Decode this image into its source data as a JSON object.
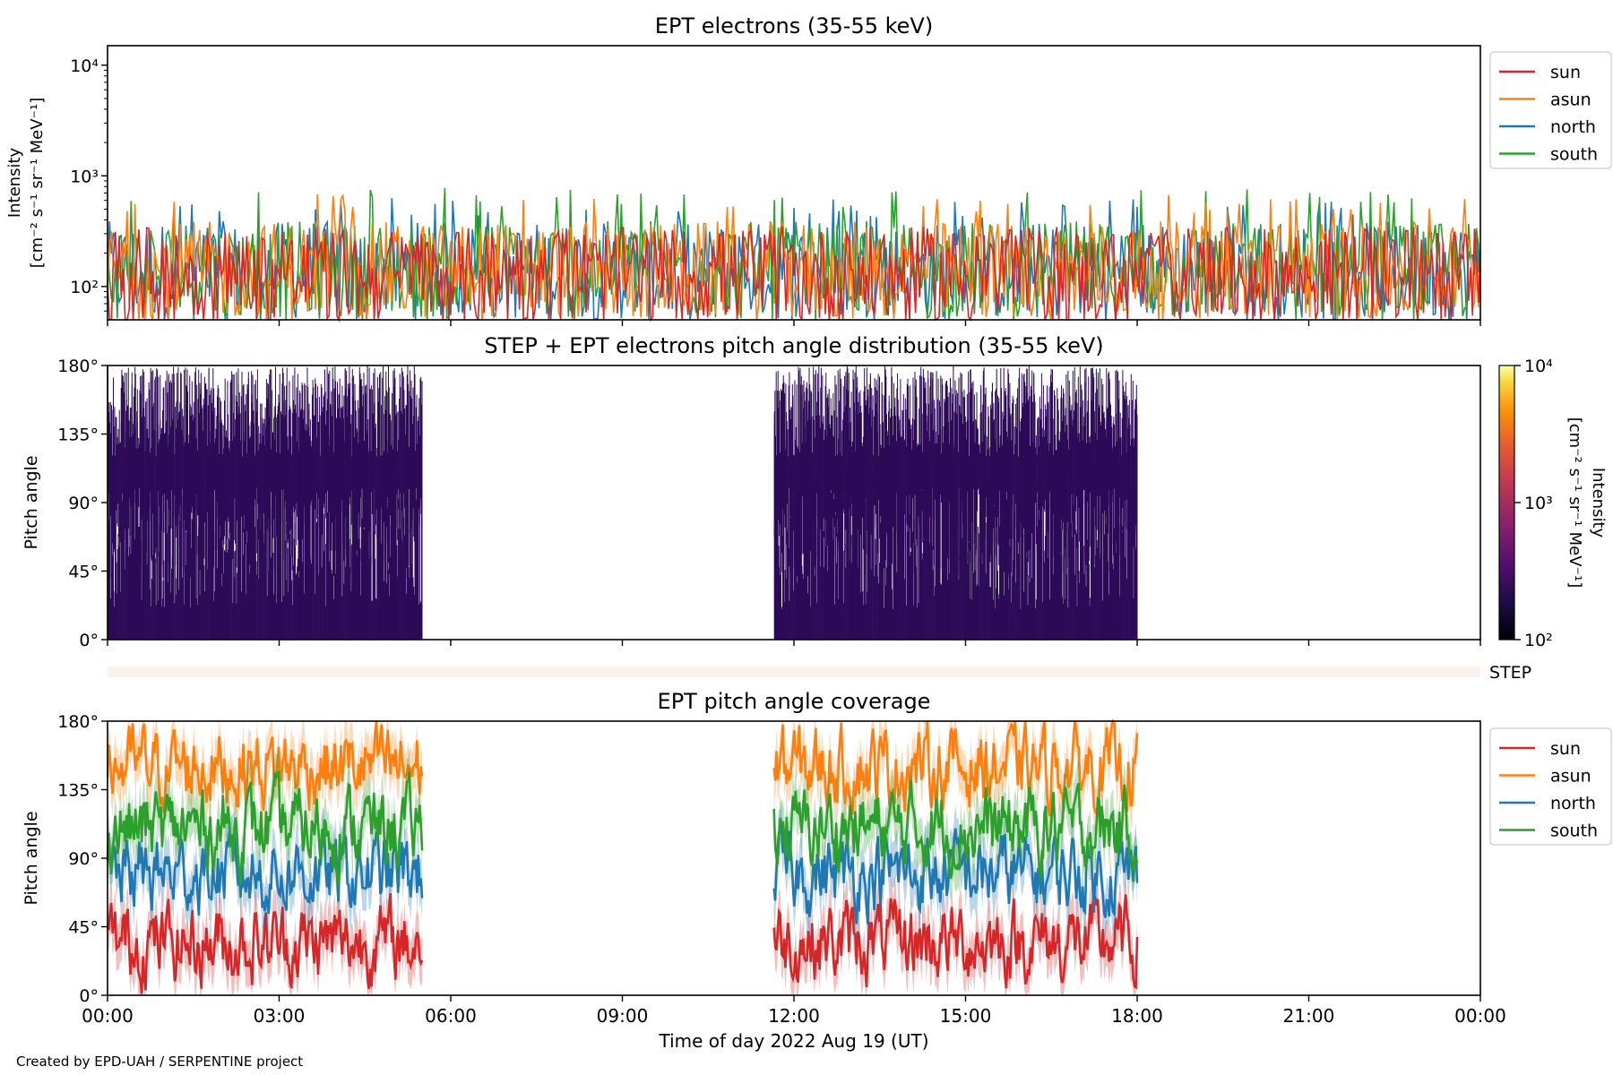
{
  "footer": "Created by EPD-UAH / SERPENTINE project",
  "colors": {
    "sun": "#d62728",
    "asun": "#ff7f0e",
    "north": "#1f77b4",
    "south": "#2ca02c",
    "pad_fill": "#2d0a58",
    "step_band": "#fdf1ee"
  },
  "chart_data": [
    {
      "id": "ept_intensity",
      "type": "line",
      "title": "EPT electrons (35-55 keV)",
      "ylabel_lines": [
        "Intensity",
        "[cm⁻² s⁻¹ sr⁻¹ MeV⁻¹]"
      ],
      "yscale": "log",
      "ylim": [
        50,
        15000
      ],
      "y_ticks": [
        {
          "value": 100,
          "label": "10²"
        },
        {
          "value": 1000,
          "label": "10³"
        },
        {
          "value": 10000,
          "label": "10⁴"
        }
      ],
      "xlim": [
        0,
        24
      ],
      "x_ticks": [
        0,
        3,
        6,
        9,
        12,
        15,
        18,
        21,
        24
      ],
      "legend_position": "outside-right",
      "series": [
        {
          "name": "north",
          "color": "#1f77b4",
          "typical_value": 170,
          "max_value": 630
        },
        {
          "name": "south",
          "color": "#2ca02c",
          "typical_value": 170,
          "max_value": 780
        },
        {
          "name": "asun",
          "color": "#ff7f0e",
          "typical_value": 170,
          "max_value": 700
        },
        {
          "name": "sun",
          "color": "#d62728",
          "typical_value": 150,
          "max_value": 350
        }
      ]
    },
    {
      "id": "pitch_angle_distribution",
      "type": "heatmap",
      "title": "STEP + EPT electrons pitch angle distribution (35-55 keV)",
      "ylabel": "Pitch angle",
      "ylim": [
        0,
        180
      ],
      "y_ticks": [
        {
          "value": 0,
          "label": "0°"
        },
        {
          "value": 45,
          "label": "45°"
        },
        {
          "value": 90,
          "label": "90°"
        },
        {
          "value": 135,
          "label": "135°"
        },
        {
          "value": 180,
          "label": "180°"
        }
      ],
      "xlim": [
        0,
        24
      ],
      "data_intervals_hours": [
        [
          0,
          5.5
        ],
        [
          11.65,
          18.0
        ]
      ],
      "typical_intensity": 200,
      "colorbar": {
        "label_lines": [
          "Intensity",
          "[cm⁻² s⁻¹ sr⁻¹ MeV⁻¹]"
        ],
        "scale": "log",
        "range": [
          100,
          10000
        ],
        "ticks": [
          {
            "value": 100,
            "label": "10²"
          },
          {
            "value": 1000,
            "label": "10³"
          },
          {
            "value": 10000,
            "label": "10⁴"
          }
        ],
        "colormap": "inferno"
      }
    },
    {
      "id": "step_band",
      "type": "band",
      "label": "STEP"
    },
    {
      "id": "ept_coverage",
      "type": "line",
      "title": "EPT pitch angle coverage",
      "ylabel": "Pitch angle",
      "ylim": [
        0,
        180
      ],
      "y_ticks": [
        {
          "value": 0,
          "label": "0°"
        },
        {
          "value": 45,
          "label": "45°"
        },
        {
          "value": 90,
          "label": "90°"
        },
        {
          "value": 135,
          "label": "135°"
        },
        {
          "value": 180,
          "label": "180°"
        }
      ],
      "xlim": [
        0,
        24
      ],
      "x_ticks": [
        {
          "value": 0,
          "label": "00:00"
        },
        {
          "value": 3,
          "label": "03:00"
        },
        {
          "value": 6,
          "label": "06:00"
        },
        {
          "value": 9,
          "label": "09:00"
        },
        {
          "value": 12,
          "label": "12:00"
        },
        {
          "value": 15,
          "label": "15:00"
        },
        {
          "value": 18,
          "label": "18:00"
        },
        {
          "value": 21,
          "label": "21:00"
        },
        {
          "value": 24,
          "label": "00:00"
        }
      ],
      "xlabel": "Time of day 2022 Aug 19 (UT)",
      "data_intervals_hours": [
        [
          0,
          5.5
        ],
        [
          11.65,
          18.0
        ]
      ],
      "legend_position": "outside-right",
      "series": [
        {
          "name": "sun",
          "color": "#d62728",
          "typical_value": 35
        },
        {
          "name": "asun",
          "color": "#ff7f0e",
          "typical_value": 150
        },
        {
          "name": "north",
          "color": "#1f77b4",
          "typical_value": 80
        },
        {
          "name": "south",
          "color": "#2ca02c",
          "typical_value": 110
        }
      ]
    }
  ]
}
